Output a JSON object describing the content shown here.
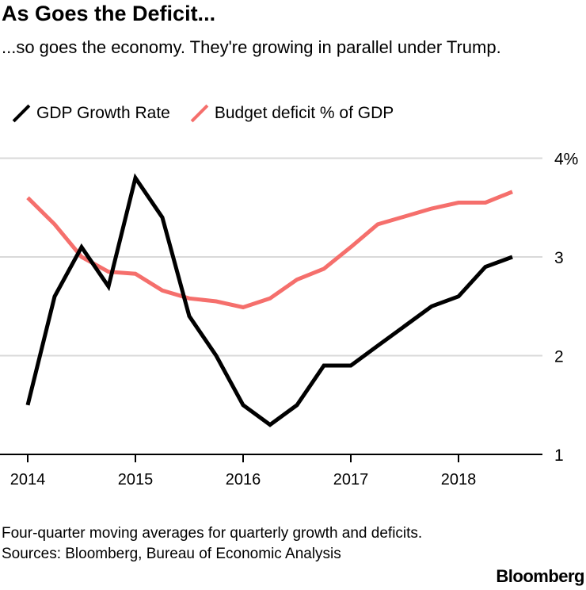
{
  "title": "As Goes the Deficit...",
  "subtitle": "...so goes the economy. They're growing in parallel under Trump.",
  "footer": {
    "note": "Four-quarter moving averages for quarterly growth and deficits.",
    "sources": "Sources: Bloomberg, Bureau of Economic Analysis",
    "brand": "Bloomberg"
  },
  "chart_data": {
    "type": "line",
    "title": "As Goes the Deficit...",
    "xlabel": "",
    "ylabel": "",
    "x": [
      2014,
      2014.25,
      2014.5,
      2014.75,
      2015,
      2015.25,
      2015.5,
      2015.75,
      2016,
      2016.25,
      2016.5,
      2016.75,
      2017,
      2017.25,
      2017.5,
      2017.75,
      2018,
      2018.25,
      2018.5
    ],
    "xticks": [
      "2014",
      "2015",
      "2016",
      "2017",
      "2018"
    ],
    "yticks": [
      "1",
      "2",
      "3",
      "4%"
    ],
    "ylim": [
      1,
      4
    ],
    "grid": true,
    "legend_position": "top-left",
    "series": [
      {
        "name": "GDP Growth Rate",
        "color": "#000000",
        "values": [
          1.5,
          2.6,
          3.1,
          2.7,
          3.8,
          3.4,
          2.4,
          2.0,
          1.5,
          1.3,
          1.5,
          1.9,
          1.9,
          2.1,
          2.3,
          2.5,
          2.6,
          2.9,
          3.0
        ]
      },
      {
        "name": "Budget deficit % of GDP",
        "color": "#f56f6c",
        "values": [
          3.6,
          3.33,
          3.0,
          2.85,
          2.83,
          2.66,
          2.58,
          2.55,
          2.49,
          2.58,
          2.77,
          2.88,
          3.1,
          3.33,
          3.41,
          3.49,
          3.55,
          3.55,
          3.66
        ]
      }
    ]
  }
}
